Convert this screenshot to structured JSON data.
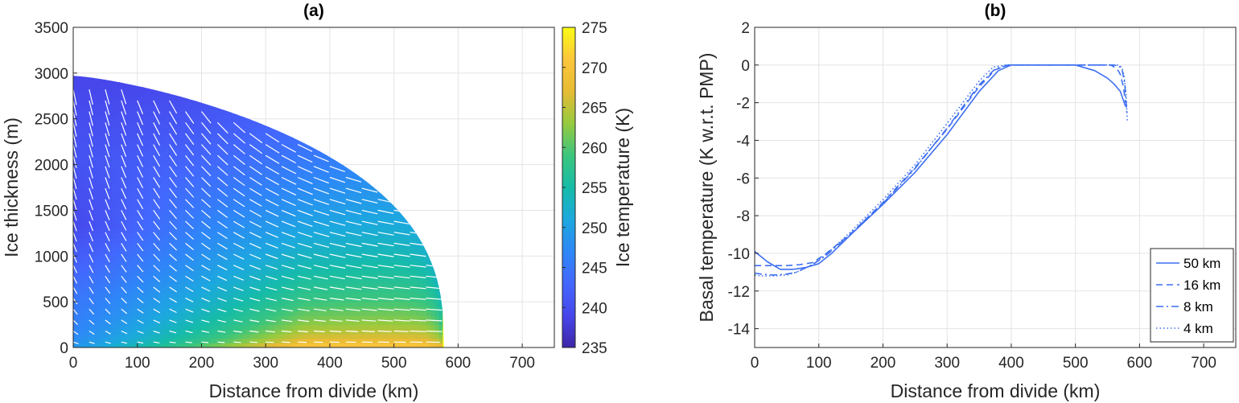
{
  "colors": {
    "line": "#3d6ff0",
    "arrow": "#ffffff",
    "grid": "#e3e3e3",
    "axis": "#262626"
  },
  "chart_data": [
    {
      "type": "heatmap",
      "title": "(a)",
      "xlabel": "Distance from divide (km)",
      "ylabel": "Ice thickness (m)",
      "xlim": [
        0,
        750
      ],
      "ylim": [
        0,
        3500
      ],
      "xticks": [
        "0",
        "100",
        "200",
        "300",
        "400",
        "500",
        "600",
        "700"
      ],
      "yticks": [
        "0",
        "500",
        "1000",
        "1500",
        "2000",
        "2500",
        "3000",
        "3500"
      ],
      "grid": true,
      "ice_sheet": {
        "divide_thickness_m": 2970,
        "margin_km": 578
      },
      "colorbar": {
        "label": "Ice temperature (K)",
        "range": [
          235,
          275
        ],
        "ticks": [
          "235",
          "240",
          "245",
          "250",
          "255",
          "260",
          "265",
          "270",
          "275"
        ],
        "colormap": [
          "#3e26a8",
          "#4746eb",
          "#4367fd",
          "#2e87f7",
          "#1ca8df",
          "#16bca8",
          "#3bc57d",
          "#96ca3f",
          "#e6bb34",
          "#fdc63c",
          "#f9fb14"
        ]
      }
    },
    {
      "type": "line",
      "title": "(b)",
      "xlabel": "Distance from divide (km)",
      "ylabel": "Basal temperature (K w.r.t. PMP)",
      "xlim": [
        0,
        750
      ],
      "ylim": [
        -15,
        2
      ],
      "xticks": [
        "0",
        "100",
        "200",
        "300",
        "400",
        "500",
        "600",
        "700"
      ],
      "yticks": [
        "-14",
        "-12",
        "-10",
        "-8",
        "-6",
        "-4",
        "-2",
        "0",
        "2"
      ],
      "grid": true,
      "legend_position": "bottom-right",
      "series": [
        {
          "name": "50 km",
          "style": "solid",
          "x": [
            0,
            20,
            40,
            60,
            80,
            100,
            120,
            150,
            200,
            250,
            300,
            350,
            380,
            400,
            450,
            500,
            530,
            550,
            560,
            570,
            578
          ],
          "y": [
            -9.9,
            -10.45,
            -10.85,
            -10.85,
            -10.75,
            -10.55,
            -10.0,
            -9.0,
            -7.4,
            -5.7,
            -3.7,
            -1.4,
            -0.3,
            0,
            0,
            0,
            -0.3,
            -0.7,
            -1.0,
            -1.4,
            -2.2
          ]
        },
        {
          "name": "16 km",
          "style": "dashed",
          "x": [
            0,
            10,
            30,
            50,
            70,
            90,
            110,
            150,
            200,
            250,
            300,
            350,
            375,
            395,
            450,
            520,
            555,
            565,
            570,
            575,
            578
          ],
          "y": [
            -10.65,
            -10.65,
            -10.65,
            -10.65,
            -10.6,
            -10.5,
            -10.05,
            -8.95,
            -7.3,
            -5.45,
            -3.4,
            -1.15,
            -0.25,
            0,
            0,
            0,
            0,
            -0.2,
            -0.5,
            -1.2,
            -2.0
          ]
        },
        {
          "name": "8 km",
          "style": "dashdot",
          "x": [
            0,
            10,
            30,
            50,
            65,
            90,
            110,
            150,
            200,
            250,
            300,
            350,
            375,
            395,
            450,
            540,
            560,
            568,
            573,
            577,
            580
          ],
          "y": [
            -11.05,
            -11.1,
            -11.15,
            -11.1,
            -11.0,
            -10.6,
            -10.15,
            -8.95,
            -7.35,
            -5.5,
            -3.35,
            -1.05,
            -0.2,
            0,
            0,
            0,
            0,
            -0.05,
            -0.3,
            -1.0,
            -2.5
          ]
        },
        {
          "name": "4 km",
          "style": "dotted",
          "x": [
            0,
            10,
            30,
            50,
            65,
            90,
            110,
            150,
            200,
            250,
            300,
            350,
            372,
            392,
            450,
            550,
            565,
            572,
            576,
            579,
            581
          ],
          "y": [
            -11.15,
            -11.2,
            -11.2,
            -11.15,
            -11.0,
            -10.6,
            -10.1,
            -8.85,
            -7.15,
            -5.3,
            -3.1,
            -0.85,
            -0.1,
            0,
            0,
            0,
            0,
            -0.1,
            -0.6,
            -1.6,
            -3.0
          ]
        }
      ]
    }
  ]
}
